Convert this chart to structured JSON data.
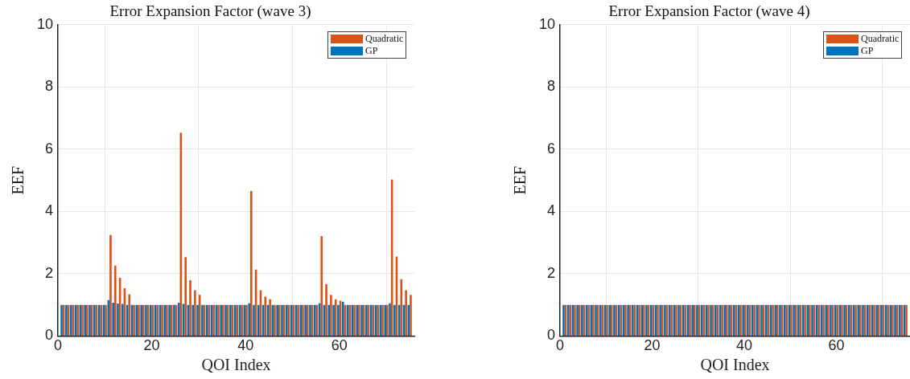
{
  "chart_data": [
    {
      "type": "bar",
      "title": "Error Expansion Factor (wave 3)",
      "xlabel": "QOI Index",
      "ylabel": "EEF",
      "x": [
        1,
        2,
        3,
        4,
        5,
        6,
        7,
        8,
        9,
        10,
        11,
        12,
        13,
        14,
        15,
        16,
        17,
        18,
        19,
        20,
        21,
        22,
        23,
        24,
        25,
        26,
        27,
        28,
        29,
        30,
        31,
        32,
        33,
        34,
        35,
        36,
        37,
        38,
        39,
        40,
        41,
        42,
        43,
        44,
        45,
        46,
        47,
        48,
        49,
        50,
        51,
        52,
        53,
        54,
        55,
        56,
        57,
        58,
        59,
        60,
        61,
        62,
        63,
        64,
        65,
        66,
        67,
        68,
        69,
        70,
        71,
        72,
        73,
        74,
        75
      ],
      "series": [
        {
          "name": "Quadratic",
          "color": "#d95319",
          "values": [
            1,
            1,
            1,
            1,
            1,
            1,
            1,
            1,
            1,
            1,
            3.24,
            2.26,
            1.87,
            1.53,
            1.34,
            1,
            1,
            1,
            1,
            1,
            1,
            1,
            1,
            1,
            1,
            6.53,
            2.53,
            1.79,
            1.47,
            1.32,
            1,
            1,
            1,
            1,
            1,
            1,
            1,
            1,
            1,
            1,
            4.66,
            2.13,
            1.47,
            1.26,
            1.18,
            1,
            1,
            1,
            1,
            1,
            1,
            1,
            1,
            1,
            1,
            3.21,
            1.66,
            1.32,
            1.18,
            1.13,
            1,
            1,
            1,
            1,
            1,
            1,
            1,
            1,
            1,
            1,
            5.03,
            2.55,
            1.82,
            1.47,
            1.32
          ]
        },
        {
          "name": "GP",
          "color": "#0072bd",
          "values": [
            1,
            1,
            1,
            1,
            1,
            1,
            1,
            1,
            1,
            1,
            1.15,
            1.07,
            1.04,
            1.03,
            1,
            1,
            1,
            1,
            1,
            1,
            1,
            1,
            1,
            1,
            1,
            1.07,
            1.03,
            1,
            1,
            1,
            1,
            1,
            1,
            1,
            1,
            1,
            1,
            1,
            1,
            1,
            1.05,
            1,
            1,
            1,
            1,
            1,
            1,
            1,
            1,
            1,
            1,
            1,
            1,
            1,
            1,
            1.05,
            1,
            1,
            1,
            1,
            1.1,
            1,
            1,
            1,
            1,
            1,
            1,
            1,
            1,
            1,
            1.05,
            1,
            1,
            1,
            1
          ]
        }
      ],
      "xlim": [
        0,
        76
      ],
      "xticks": [
        0,
        20,
        40,
        60
      ],
      "ylim": [
        0,
        10
      ],
      "yticks": [
        0,
        2,
        4,
        6,
        8,
        10
      ],
      "grid": true,
      "legend": "top right"
    },
    {
      "type": "bar",
      "title": "Error Expansion Factor (wave 4)",
      "xlabel": "QOI Index",
      "ylabel": "EEF",
      "x": [
        1,
        2,
        3,
        4,
        5,
        6,
        7,
        8,
        9,
        10,
        11,
        12,
        13,
        14,
        15,
        16,
        17,
        18,
        19,
        20,
        21,
        22,
        23,
        24,
        25,
        26,
        27,
        28,
        29,
        30,
        31,
        32,
        33,
        34,
        35,
        36,
        37,
        38,
        39,
        40,
        41,
        42,
        43,
        44,
        45,
        46,
        47,
        48,
        49,
        50,
        51,
        52,
        53,
        54,
        55,
        56,
        57,
        58,
        59,
        60,
        61,
        62,
        63,
        64,
        65,
        66,
        67,
        68,
        69,
        70,
        71,
        72,
        73,
        74,
        75
      ],
      "series": [
        {
          "name": "Quadratic",
          "color": "#d95319",
          "values": [
            1,
            1,
            1,
            1,
            1,
            1,
            1,
            1,
            1,
            1,
            1,
            1,
            1,
            1,
            1,
            1,
            1,
            1,
            1,
            1,
            1,
            1,
            1,
            1,
            1,
            1,
            1,
            1,
            1,
            1,
            1,
            1,
            1,
            1,
            1,
            1,
            1,
            1,
            1,
            1,
            1,
            1,
            1,
            1,
            1,
            1,
            1,
            1,
            1,
            1,
            1,
            1,
            1,
            1,
            1,
            1,
            1,
            1,
            1,
            1,
            1,
            1,
            1,
            1,
            1,
            1,
            1,
            1,
            1,
            1,
            1,
            1,
            1,
            1,
            1
          ]
        },
        {
          "name": "GP",
          "color": "#0072bd",
          "values": [
            1,
            1,
            1,
            1,
            1,
            1,
            1,
            1,
            1,
            1,
            1,
            1,
            1,
            1,
            1,
            1,
            1,
            1,
            1,
            1,
            1,
            1,
            1,
            1,
            1,
            1,
            1,
            1,
            1,
            1,
            1,
            1,
            1,
            1,
            1,
            1,
            1,
            1,
            1,
            1,
            1,
            1,
            1,
            1,
            1,
            1,
            1,
            1,
            1,
            1,
            1,
            1,
            1,
            1,
            1,
            1,
            1,
            1,
            1,
            1,
            1,
            1,
            1,
            1,
            1,
            1,
            1,
            1,
            1,
            1,
            1,
            1,
            1,
            1,
            1
          ]
        }
      ],
      "xlim": [
        0,
        76
      ],
      "xticks": [
        0,
        20,
        40,
        60
      ],
      "ylim": [
        0,
        10
      ],
      "yticks": [
        0,
        2,
        4,
        6,
        8,
        10
      ],
      "grid": true,
      "legend": "top right"
    }
  ]
}
